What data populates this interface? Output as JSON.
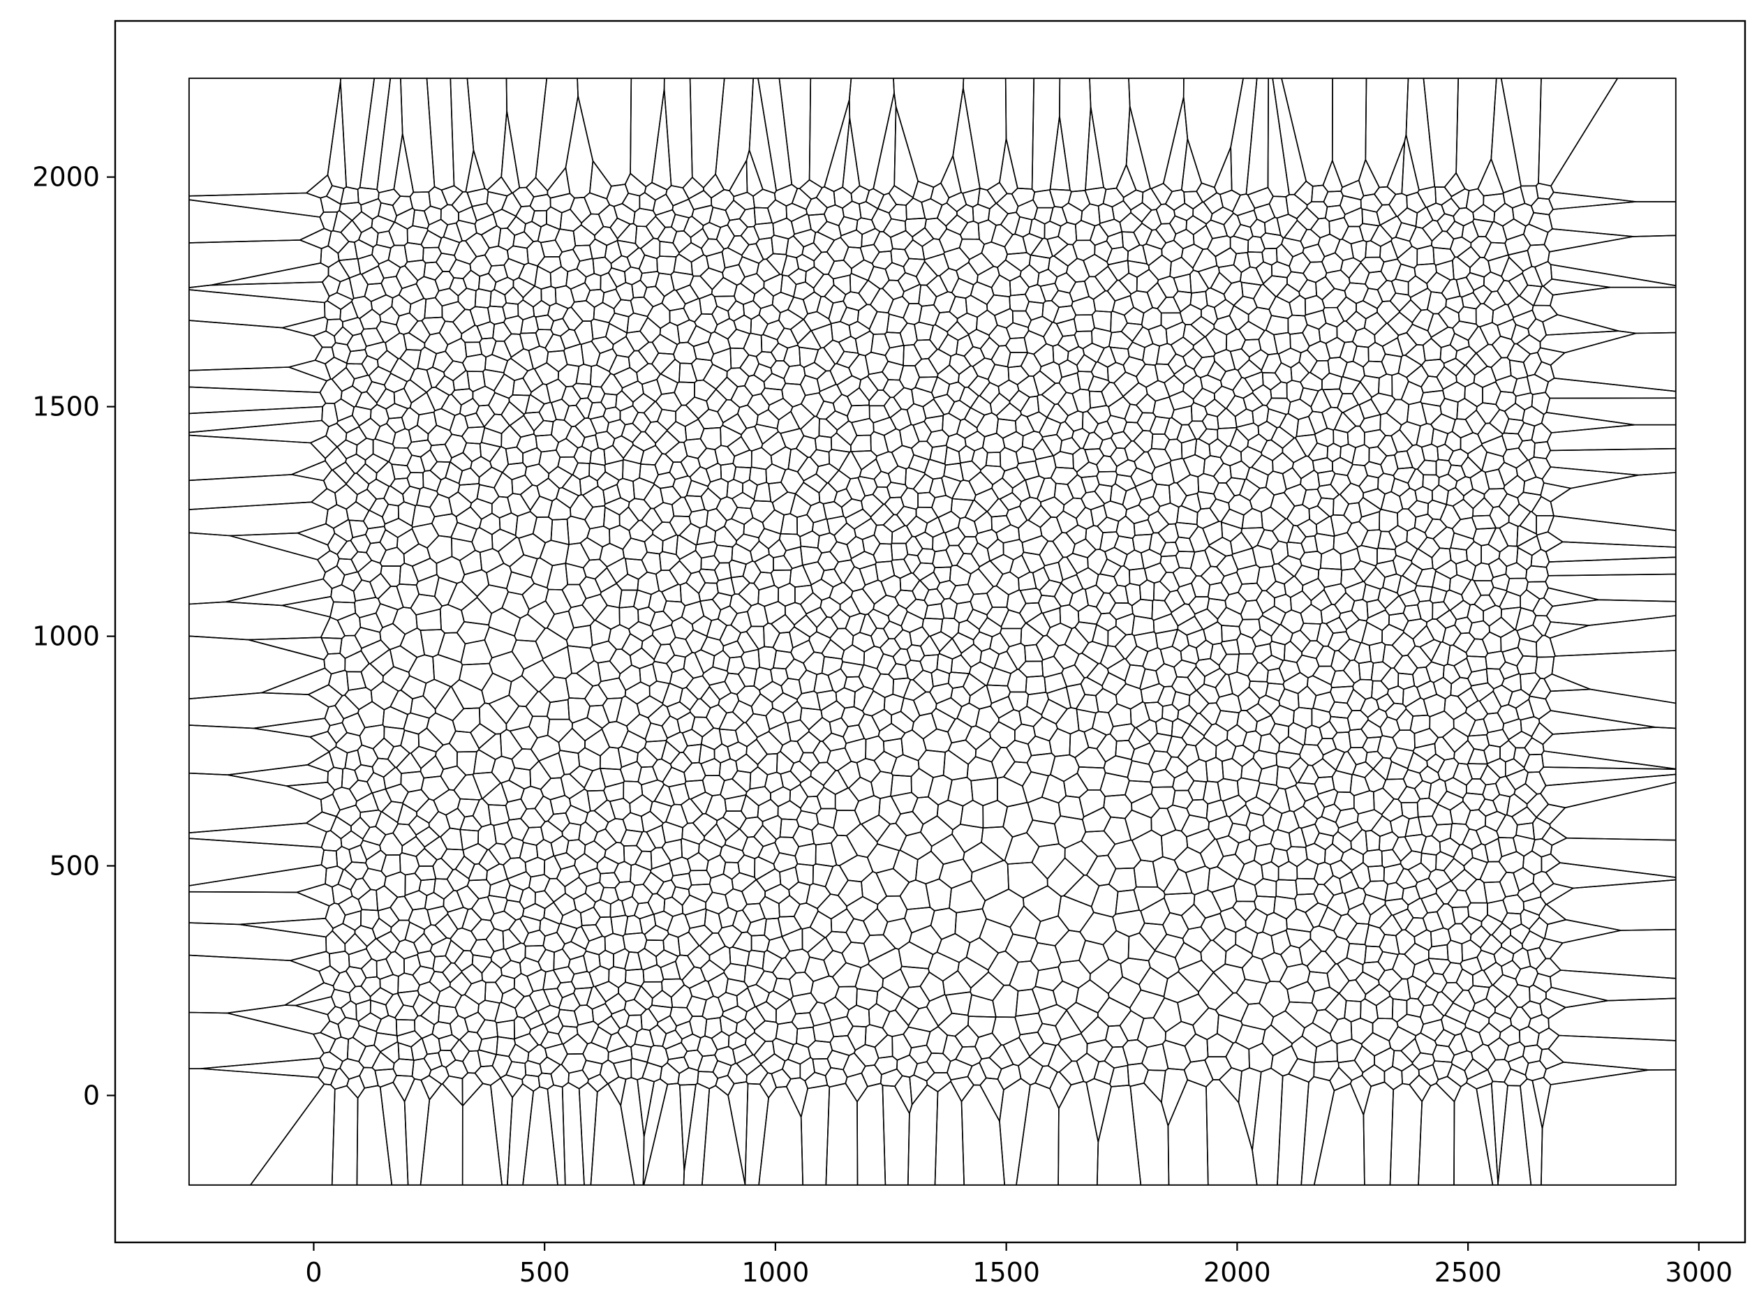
{
  "chart_data": {
    "type": "voronoi",
    "title": "",
    "xlabel": "",
    "ylabel": "",
    "xlim": [
      -430,
      3100
    ],
    "ylim": [
      -320,
      2340
    ],
    "clip_box": {
      "x": [
        -270,
        2950
      ],
      "y": [
        -195,
        2215
      ]
    },
    "x_ticks": [
      0,
      500,
      1000,
      1500,
      2000,
      2500,
      3000
    ],
    "y_ticks": [
      0,
      500,
      1000,
      1500,
      2000
    ],
    "x_tick_labels": [
      "0",
      "500",
      "1000",
      "1500",
      "2000",
      "2500",
      "3000"
    ],
    "y_tick_labels": [
      "0",
      "500",
      "1000",
      "1500",
      "2000"
    ],
    "grid": false,
    "legend": "none",
    "points_region": {
      "x": [
        0,
        2700
      ],
      "y": [
        0,
        2000
      ]
    },
    "approx_seed_count": 4200,
    "line_color": "#000000",
    "background": "#ffffff"
  }
}
